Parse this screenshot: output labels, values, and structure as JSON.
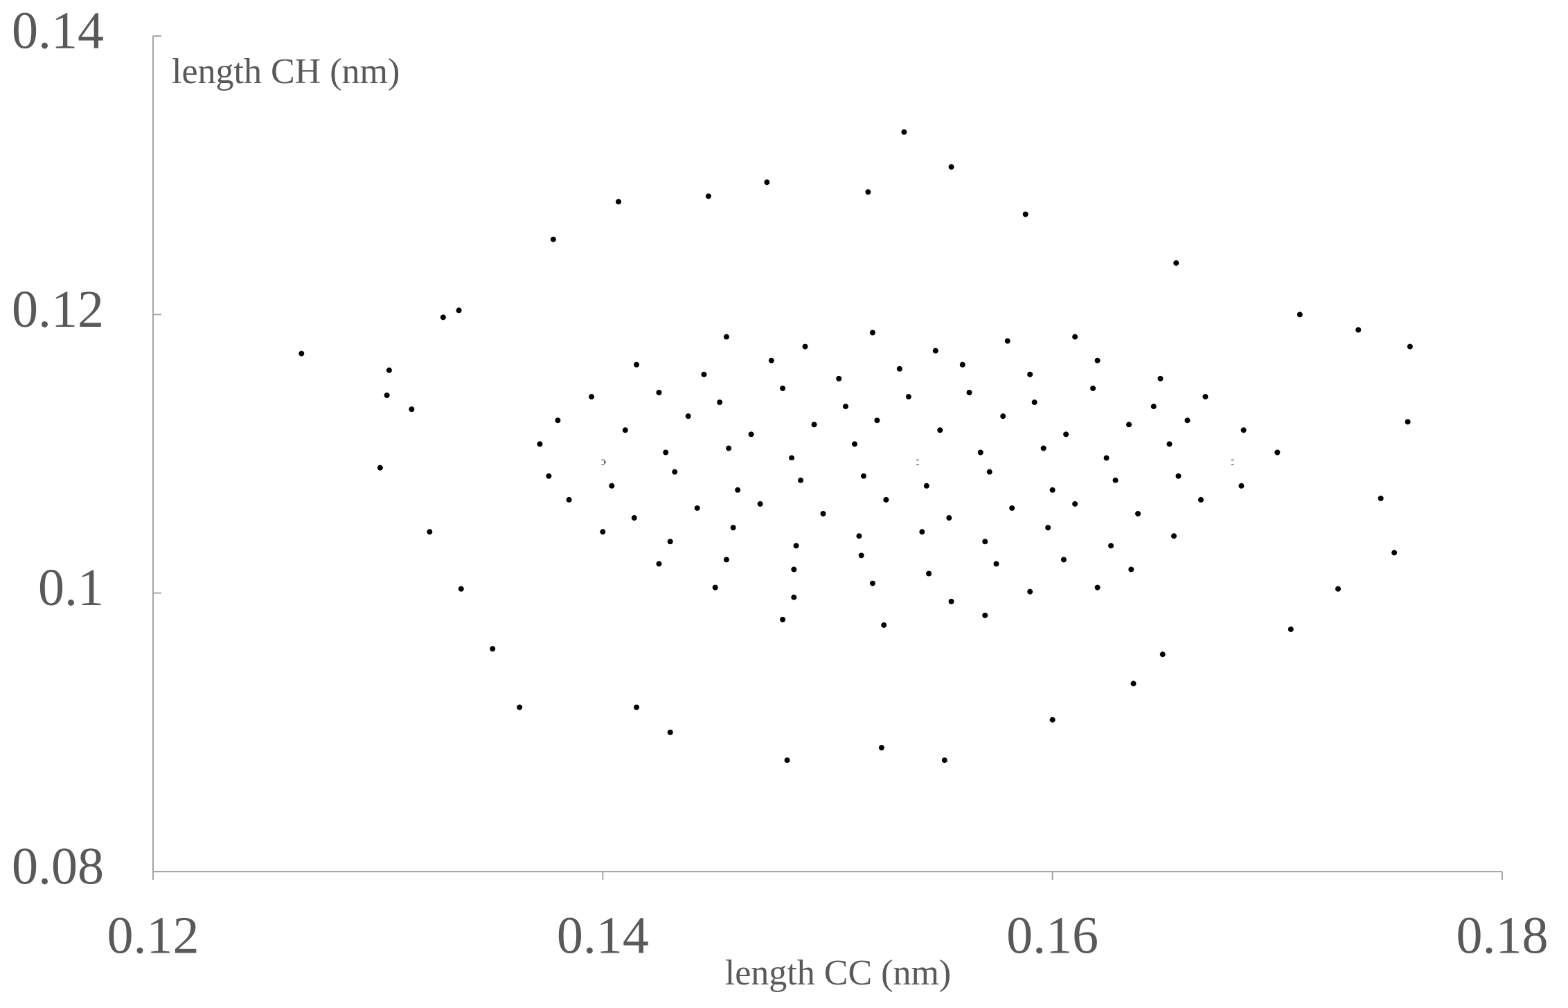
{
  "chart_data": {
    "type": "scatter",
    "xlabel": "length CC (nm)",
    "ylabel": "length  CH (nm)",
    "xlim": [
      0.12,
      0.18
    ],
    "xticks": [
      0.12,
      0.14,
      0.16,
      0.18
    ],
    "ylim": [
      0.08,
      0.14
    ],
    "yticks": [
      0.08,
      0.1,
      0.12,
      0.14
    ],
    "grid": false,
    "series": [
      {
        "color": "#000000",
        "x": [
          0.1266,
          0.1305,
          0.1304,
          0.1301,
          0.1315,
          0.1323,
          0.1329,
          0.1336,
          0.1337,
          0.1351,
          0.1363,
          0.1378,
          0.1407,
          0.1415,
          0.143,
          0.1447,
          0.1473,
          0.1482,
          0.1518,
          0.1524,
          0.1534,
          0.1552,
          0.1555,
          0.16,
          0.1588,
          0.1655,
          0.171,
          0.1736,
          0.1759,
          0.1758,
          0.1752,
          0.1727,
          0.1706,
          0.1746,
          0.1636,
          0.1649,
          0.1455,
          0.149,
          0.152,
          0.1548,
          0.158,
          0.161,
          0.1415,
          0.1445,
          0.1475,
          0.1505,
          0.1532,
          0.156,
          0.159,
          0.162,
          0.1648,
          0.1395,
          0.1425,
          0.1452,
          0.148,
          0.1508,
          0.1536,
          0.1563,
          0.1592,
          0.1618,
          0.1645,
          0.1668,
          0.138,
          0.141,
          0.1438,
          0.1466,
          0.1494,
          0.1522,
          0.155,
          0.1578,
          0.1606,
          0.1634,
          0.166,
          0.1685,
          0.1372,
          0.14,
          0.1428,
          0.1456,
          0.1484,
          0.1512,
          0.154,
          0.1568,
          0.1596,
          0.1624,
          0.1652,
          0.168,
          0.17,
          0.1376,
          0.1404,
          0.1432,
          0.146,
          0.1488,
          0.1516,
          0.1544,
          0.1572,
          0.16,
          0.1628,
          0.1656,
          0.1684,
          0.1385,
          0.1414,
          0.1442,
          0.147,
          0.1498,
          0.1526,
          0.1554,
          0.1582,
          0.161,
          0.1638,
          0.1666,
          0.14,
          0.143,
          0.1458,
          0.1486,
          0.1514,
          0.1542,
          0.157,
          0.1598,
          0.1626,
          0.1654,
          0.1425,
          0.1455,
          0.1485,
          0.1515,
          0.1545,
          0.1575,
          0.1605,
          0.1635,
          0.145,
          0.1485,
          0.152,
          0.1555,
          0.159,
          0.162,
          0.148,
          0.1525,
          0.157
        ],
        "y": [
          0.1172,
          0.116,
          0.1142,
          0.109,
          0.1132,
          0.1044,
          0.1198,
          0.1203,
          0.1003,
          0.096,
          0.0918,
          0.1254,
          0.1281,
          0.0918,
          0.09,
          0.1285,
          0.1295,
          0.088,
          0.1288,
          0.0889,
          0.1331,
          0.088,
          0.1306,
          0.0909,
          0.1272,
          0.1237,
          0.12,
          0.1189,
          0.1177,
          0.1123,
          0.1029,
          0.1003,
          0.0974,
          0.1068,
          0.0935,
          0.0956,
          0.1184,
          0.1177,
          0.1187,
          0.1174,
          0.1181,
          0.1184,
          0.1164,
          0.1157,
          0.1167,
          0.1154,
          0.1161,
          0.1164,
          0.1157,
          0.1167,
          0.1154,
          0.1141,
          0.1144,
          0.1137,
          0.1147,
          0.1134,
          0.1141,
          0.1144,
          0.1137,
          0.1147,
          0.1134,
          0.1141,
          0.1124,
          0.1117,
          0.1127,
          0.1114,
          0.1121,
          0.1124,
          0.1117,
          0.1127,
          0.1114,
          0.1121,
          0.1124,
          0.1117,
          0.1107,
          0.1094,
          0.1101,
          0.1104,
          0.1097,
          0.1107,
          0.1094,
          0.1101,
          0.1104,
          0.1097,
          0.1107,
          0.1094,
          0.1101,
          0.1084,
          0.1077,
          0.1087,
          0.1074,
          0.1081,
          0.1084,
          0.1077,
          0.1087,
          0.1074,
          0.1081,
          0.1084,
          0.1077,
          0.1067,
          0.1054,
          0.1061,
          0.1064,
          0.1057,
          0.1067,
          0.1054,
          0.1061,
          0.1064,
          0.1057,
          0.1067,
          0.1044,
          0.1037,
          0.1047,
          0.1034,
          0.1041,
          0.1044,
          0.1037,
          0.1047,
          0.1034,
          0.1041,
          0.1021,
          0.1024,
          0.1017,
          0.1027,
          0.1014,
          0.1021,
          0.1024,
          0.1017,
          0.1004,
          0.0997,
          0.1007,
          0.0994,
          0.1001,
          0.1004,
          0.0981,
          0.0977,
          0.0984
        ]
      }
    ],
    "trendline": {
      "x": [
        0.1328,
        0.1715
      ],
      "y": [
        0.1094,
        0.1094
      ],
      "color": "#ffffff"
    }
  }
}
